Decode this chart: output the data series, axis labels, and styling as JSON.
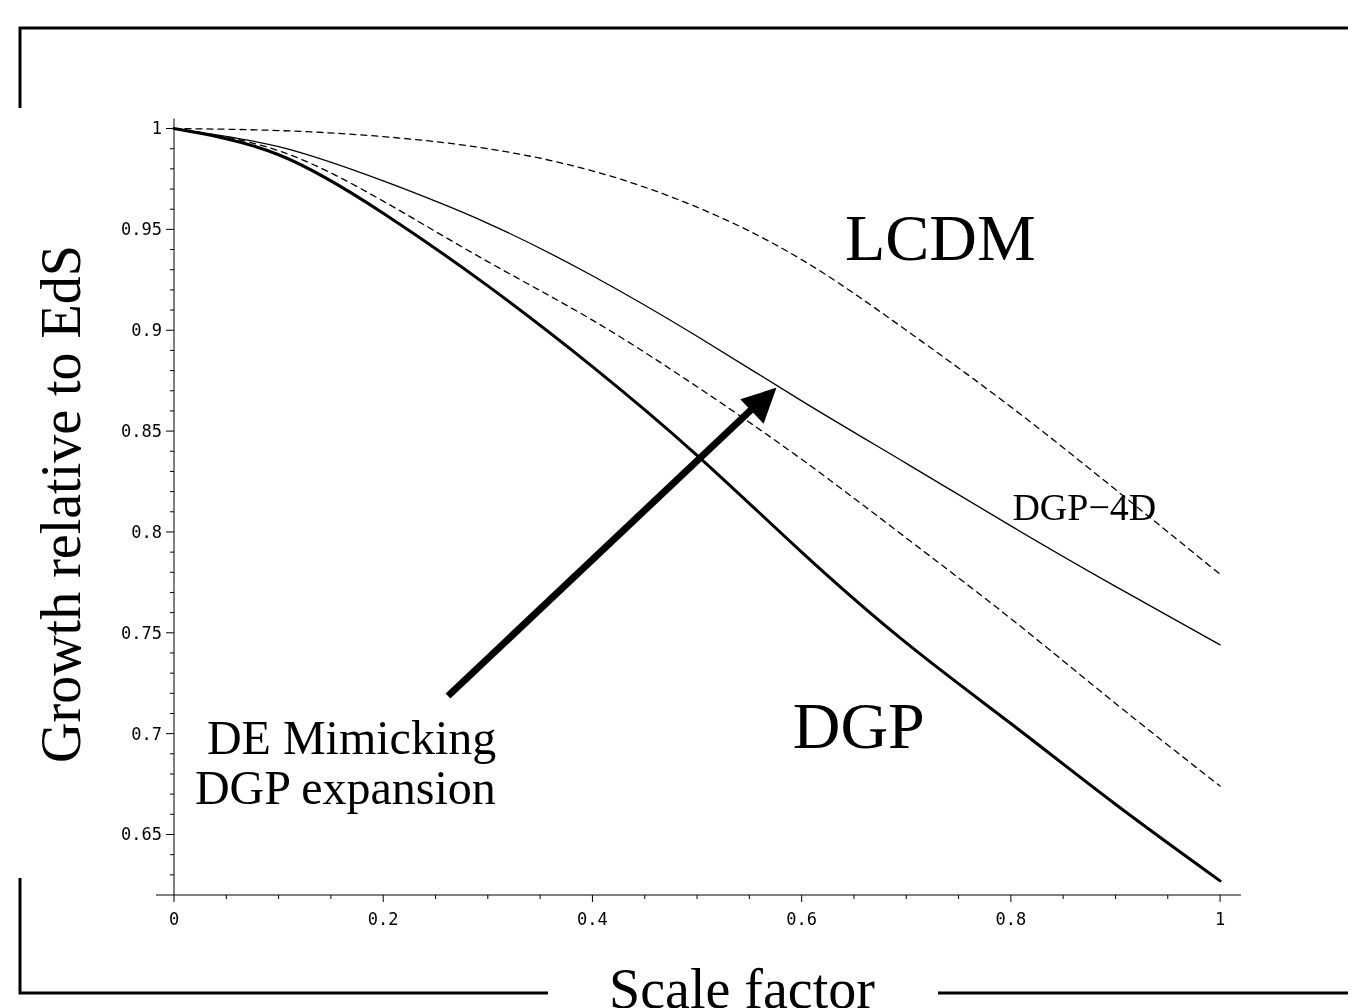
{
  "chart_data": {
    "type": "line",
    "xlabel": "Scale factor",
    "ylabel": "Growth relative to EdS",
    "xlim": [
      0,
      1.02
    ],
    "ylim": [
      0.62,
      1.005
    ],
    "xticks": [
      0,
      {
        "value": 0.05,
        "label": null
      },
      {
        "value": 0.1,
        "label": null
      },
      {
        "value": 0.15,
        "label": null
      },
      0.2,
      {
        "value": 0.25,
        "label": null
      },
      {
        "value": 0.3,
        "label": null
      },
      {
        "value": 0.35,
        "label": null
      },
      0.4,
      {
        "value": 0.45,
        "label": null
      },
      {
        "value": 0.5,
        "label": null
      },
      {
        "value": 0.55,
        "label": null
      },
      0.6,
      {
        "value": 0.65,
        "label": null
      },
      {
        "value": 0.7,
        "label": null
      },
      {
        "value": 0.75,
        "label": null
      },
      0.8,
      {
        "value": 0.85,
        "label": null
      },
      {
        "value": 0.9,
        "label": null
      },
      {
        "value": 0.95,
        "label": null
      },
      1
    ],
    "yticks": [
      {
        "value": 0.63,
        "label": null
      },
      {
        "value": 0.64,
        "label": null
      },
      0.65,
      {
        "value": 0.66,
        "label": null
      },
      {
        "value": 0.67,
        "label": null
      },
      {
        "value": 0.68,
        "label": null
      },
      {
        "value": 0.69,
        "label": null
      },
      0.7,
      {
        "value": 0.71,
        "label": null
      },
      {
        "value": 0.72,
        "label": null
      },
      {
        "value": 0.73,
        "label": null
      },
      {
        "value": 0.74,
        "label": null
      },
      0.75,
      {
        "value": 0.76,
        "label": null
      },
      {
        "value": 0.77,
        "label": null
      },
      {
        "value": 0.78,
        "label": null
      },
      {
        "value": 0.79,
        "label": null
      },
      0.8,
      {
        "value": 0.81,
        "label": null
      },
      {
        "value": 0.82,
        "label": null
      },
      {
        "value": 0.83,
        "label": null
      },
      {
        "value": 0.84,
        "label": null
      },
      0.85,
      {
        "value": 0.86,
        "label": null
      },
      {
        "value": 0.87,
        "label": null
      },
      {
        "value": 0.88,
        "label": null
      },
      {
        "value": 0.89,
        "label": null
      },
      0.9,
      {
        "value": 0.91,
        "label": null
      },
      {
        "value": 0.92,
        "label": null
      },
      {
        "value": 0.93,
        "label": null
      },
      {
        "value": 0.94,
        "label": null
      },
      0.95,
      {
        "value": 0.96,
        "label": null
      },
      {
        "value": 0.97,
        "label": null
      },
      {
        "value": 0.98,
        "label": null
      },
      {
        "value": 0.99,
        "label": null
      },
      1
    ],
    "x": [
      0,
      0.1,
      0.2,
      0.3,
      0.4,
      0.5,
      0.6,
      0.7,
      0.8,
      0.9,
      1
    ],
    "series": [
      {
        "color": "#000000",
        "line_style": "dashed",
        "values": [
          1,
          0.999,
          0.996,
          0.99,
          0.979,
          0.961,
          0.935,
          0.9,
          0.862,
          0.821,
          0.779
        ]
      },
      {
        "color": "#000000",
        "line_style": "solid",
        "values": [
          1,
          0.991,
          0.974,
          0.953,
          0.927,
          0.897,
          0.865,
          0.834,
          0.803,
          0.773,
          0.744
        ]
      },
      {
        "color": "#000000",
        "line_style": "dashed",
        "values": [
          1,
          0.989,
          0.964,
          0.934,
          0.905,
          0.872,
          0.836,
          0.797,
          0.757,
          0.715,
          0.674
        ]
      },
      {
        "color": "#000000",
        "line_style": "solid",
        "values": [
          1,
          0.987,
          0.958,
          0.922,
          0.882,
          0.838,
          0.79,
          0.745,
          0.705,
          0.665,
          0.627
        ]
      }
    ],
    "annotations": [
      "LCDM",
      "DGP−4D",
      "DGP",
      "DE Mimicking\nDGP expansion"
    ],
    "grid": false
  }
}
